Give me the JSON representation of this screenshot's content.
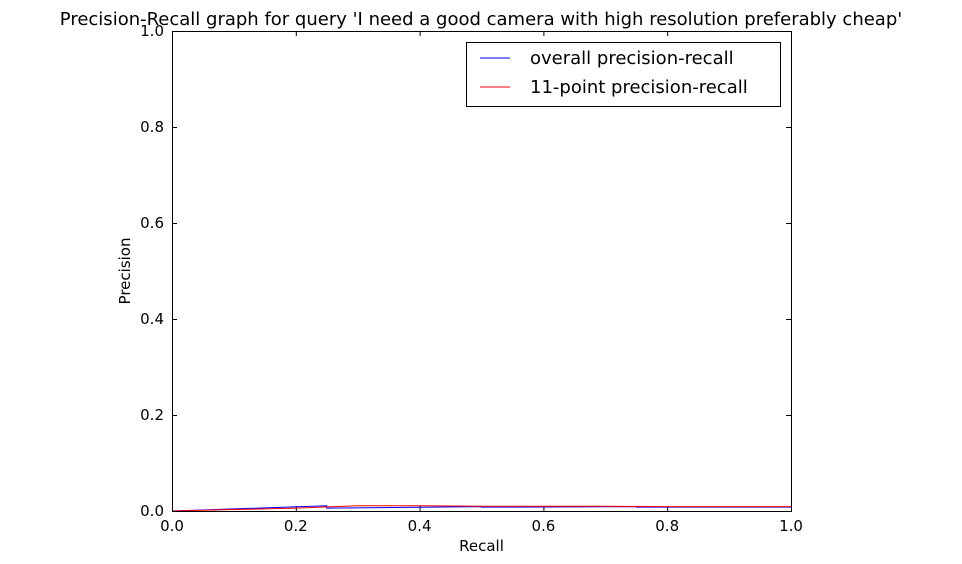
{
  "chart_data": {
    "type": "line",
    "title": "Precision-Recall graph for query 'I need a good camera with high resolution preferably cheap'",
    "xlabel": "Recall",
    "ylabel": "Precision",
    "xlim": [
      0.0,
      1.0
    ],
    "ylim": [
      0.0,
      1.0
    ],
    "xticks": [
      "0.0",
      "0.2",
      "0.4",
      "0.6",
      "0.8",
      "1.0"
    ],
    "yticks": [
      "0.0",
      "0.2",
      "0.4",
      "0.6",
      "0.8",
      "1.0"
    ],
    "grid": false,
    "legend_position": "top-right",
    "series": [
      {
        "name": "overall precision-recall",
        "color": "#0000ff",
        "x": [
          0.0,
          0.25,
          0.25,
          0.5,
          0.5,
          0.75,
          0.75,
          1.0
        ],
        "y": [
          0.0,
          0.011,
          0.006,
          0.009,
          0.008,
          0.009,
          0.008,
          0.008
        ]
      },
      {
        "name": "11-point precision-recall",
        "color": "#ff0000",
        "x": [
          0.0,
          0.1,
          0.2,
          0.3,
          0.4,
          0.5,
          0.6,
          0.7,
          0.8,
          0.9,
          1.0
        ],
        "y": [
          0.0,
          0.003,
          0.006,
          0.011,
          0.011,
          0.01,
          0.01,
          0.01,
          0.009,
          0.009,
          0.009
        ]
      }
    ]
  }
}
